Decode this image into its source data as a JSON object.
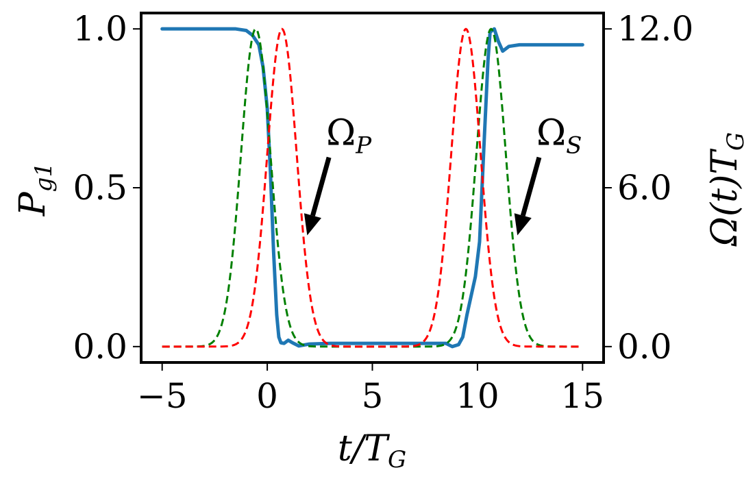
{
  "chart_data": {
    "type": "line",
    "xlabel_main": "t/T",
    "xlabel_sub": "G",
    "ylabel_left_main": "P",
    "ylabel_left_sub": "g1",
    "ylabel_right_main": "Ω(t)T",
    "ylabel_right_sub": "G",
    "xlim": [
      -6,
      16
    ],
    "ylim_left": [
      -0.05,
      1.05
    ],
    "ylim_right": [
      -0.6,
      12.6
    ],
    "x_ticks": [
      -5,
      0,
      5,
      10,
      15
    ],
    "x_tick_labels": [
      "−5",
      "0",
      "5",
      "10",
      "15"
    ],
    "y_left_ticks": [
      0.0,
      0.5,
      1.0
    ],
    "y_left_tick_labels": [
      "0.0",
      "0.5",
      "1.0"
    ],
    "y_right_ticks": [
      0.0,
      6.0,
      12.0
    ],
    "y_right_tick_labels": [
      "0.0",
      "6.0",
      "12.0"
    ],
    "grid": false,
    "series": [
      {
        "style": "solid",
        "color": "#1f77b4",
        "axis": "left",
        "x": [
          -5,
          -1.5,
          -1.0,
          -0.7,
          -0.4,
          -0.2,
          0.0,
          0.15,
          0.3,
          0.45,
          0.55,
          0.65,
          0.8,
          1.0,
          1.2,
          1.5,
          2.0,
          3.0,
          5.0,
          7.0,
          8.0,
          8.5,
          8.8,
          9.1,
          9.3,
          9.5,
          9.7,
          9.9,
          10.1,
          10.3,
          10.5,
          10.6,
          10.8,
          11.0,
          11.2,
          11.5,
          12.0,
          13.0,
          15.0
        ],
        "y": [
          1.0,
          1.0,
          0.995,
          0.98,
          0.95,
          0.88,
          0.75,
          0.55,
          0.3,
          0.1,
          0.03,
          0.012,
          0.01,
          0.02,
          0.012,
          0.002,
          0.008,
          0.01,
          0.01,
          0.01,
          0.01,
          0.01,
          0.0,
          0.006,
          0.03,
          0.1,
          0.16,
          0.22,
          0.33,
          0.62,
          0.9,
          0.99,
          1.0,
          0.96,
          0.93,
          0.945,
          0.95,
          0.95,
          0.95
        ]
      },
      {
        "style": "dashed",
        "color": "#008000",
        "axis": "right",
        "peaks": [
          {
            "center": -0.55,
            "sigma": 0.7
          },
          {
            "center": 10.65,
            "sigma": 0.7
          }
        ],
        "amplitude": 12.0
      },
      {
        "style": "dashed",
        "color": "#ff0000",
        "axis": "right",
        "peaks": [
          {
            "center": 0.7,
            "sigma": 0.7
          },
          {
            "center": 9.45,
            "sigma": 0.7
          }
        ],
        "amplitude": 12.0
      }
    ],
    "annotations": [
      {
        "label_main": "Ω",
        "label_sub": "P",
        "text_x": 3.0,
        "text_y": 0.6,
        "arrow_to_x": 1.9,
        "arrow_to_y": 0.35
      },
      {
        "label_main": "Ω",
        "label_sub": "S",
        "text_x": 13.0,
        "text_y": 0.6,
        "arrow_to_x": 11.9,
        "arrow_to_y": 0.35
      }
    ]
  }
}
